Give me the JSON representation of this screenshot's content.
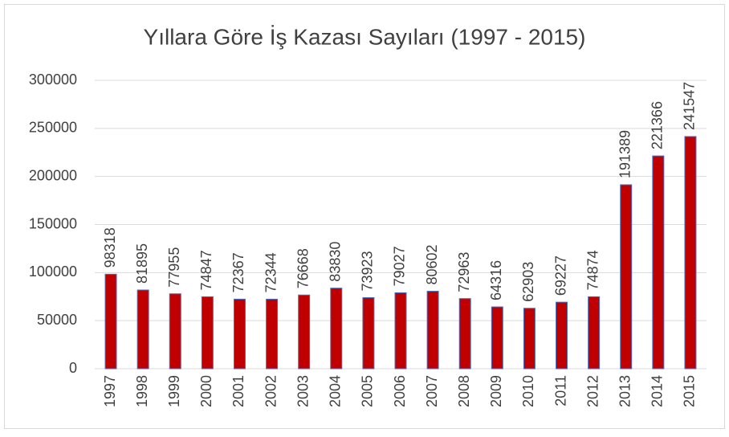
{
  "chart_data": {
    "type": "bar",
    "title": "Yıllara Göre İş Kazası Sayıları (1997 - 2015)",
    "categories": [
      "1997",
      "1998",
      "1999",
      "2000",
      "2001",
      "2002",
      "2003",
      "2004",
      "2005",
      "2006",
      "2007",
      "2008",
      "2009",
      "2010",
      "2011",
      "2012",
      "2013",
      "2014",
      "2015"
    ],
    "values": [
      98318,
      81895,
      77955,
      74847,
      72367,
      72344,
      76668,
      83830,
      73923,
      79027,
      80602,
      72963,
      64316,
      62903,
      69227,
      74874,
      191389,
      221366,
      241547
    ],
    "color": "#c00000",
    "edgecolor": "#4472c4",
    "ylim": [
      0,
      300000
    ],
    "yticks": [
      0,
      50000,
      100000,
      150000,
      200000,
      250000,
      300000
    ],
    "grid": true
  }
}
